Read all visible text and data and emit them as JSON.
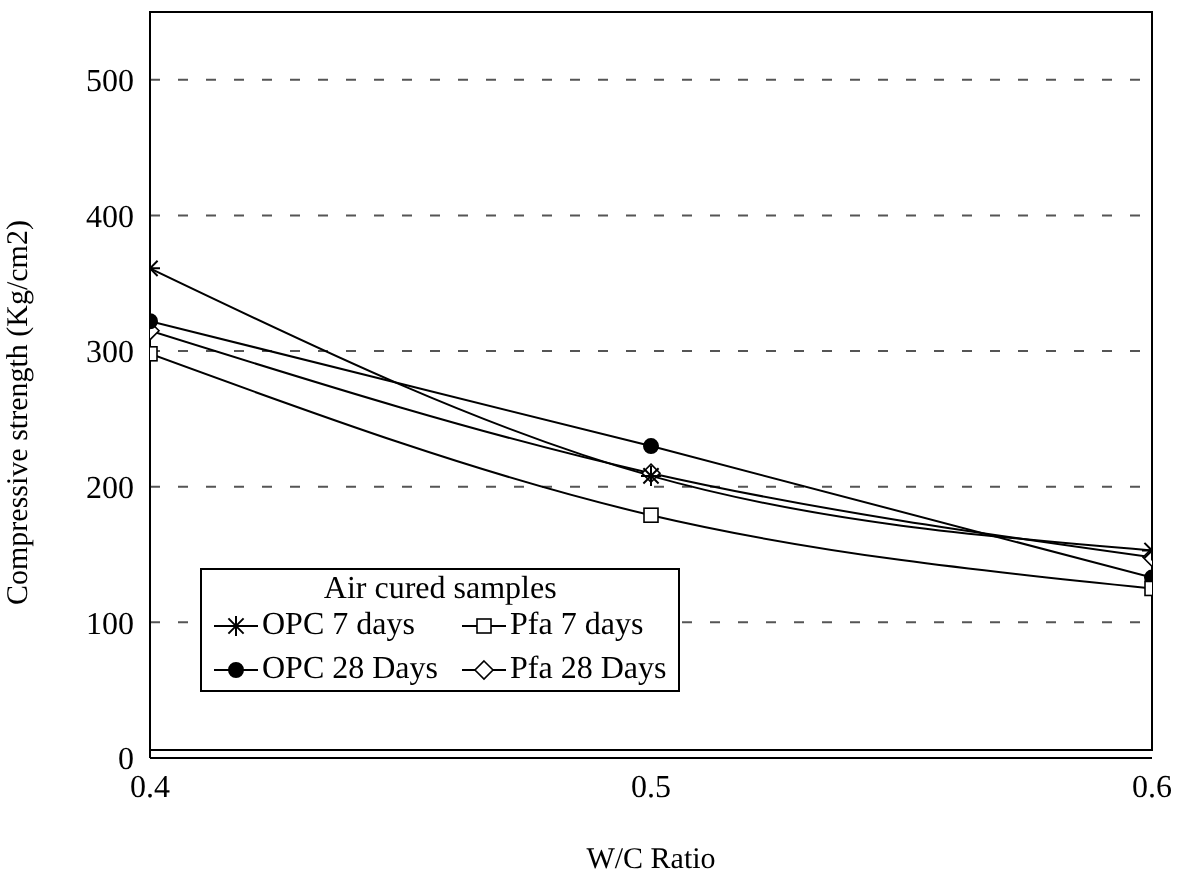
{
  "chart_data": {
    "type": "line",
    "xlabel": "W/C Ratio",
    "ylabel": "Compressive strength (Kg/cm2)",
    "legend_title": "Air cured samples",
    "x": [
      0.4,
      0.5,
      0.6
    ],
    "series": [
      {
        "name": "OPC 7 days",
        "color": "#000000",
        "marker": "cross",
        "values": [
          361,
          208,
          153
        ]
      },
      {
        "name": "Pfa 7 days",
        "color": "#000000",
        "marker": "square",
        "values": [
          298,
          179,
          125
        ]
      },
      {
        "name": "OPC 28 Days",
        "color": "#000000",
        "marker": "circle",
        "values": [
          322,
          230,
          133
        ]
      },
      {
        "name": "Pfa 28 Days",
        "color": "#000000",
        "marker": "diamond",
        "values": [
          315,
          210,
          148
        ]
      }
    ],
    "xlim": [
      0.4,
      0.6
    ],
    "xticks": [
      0.4,
      0.5,
      0.6
    ],
    "ylim": [
      0,
      550
    ],
    "yticks": [
      0,
      100,
      200,
      300,
      400,
      500
    ],
    "grid": "y",
    "legend": "bottom left",
    "line_style": "solid"
  }
}
